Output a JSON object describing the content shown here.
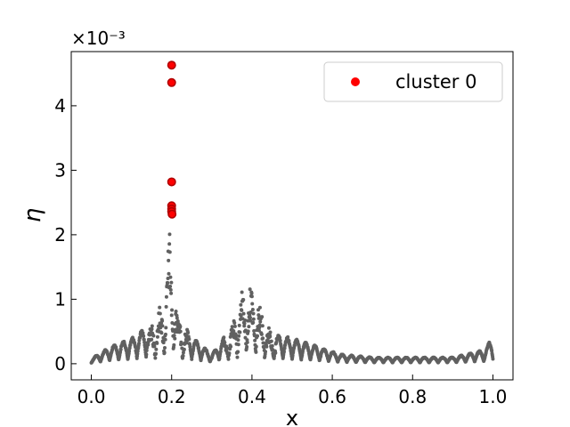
{
  "chart_data": {
    "type": "scatter",
    "title": "",
    "xlabel": "x",
    "ylabel": "η",
    "y_scale_label": "×10⁻³",
    "xlim": [
      -0.05,
      1.05
    ],
    "ylim": [
      -0.00025,
      0.00484
    ],
    "x_ticks": [
      0.0,
      0.2,
      0.4,
      0.6,
      0.8,
      1.0
    ],
    "x_tick_labels": [
      "0.0",
      "0.2",
      "0.4",
      "0.6",
      "0.8",
      "1.0"
    ],
    "y_ticks": [
      0,
      0.001,
      0.002,
      0.003,
      0.004
    ],
    "y_tick_labels": [
      "0",
      "1",
      "2",
      "3",
      "4"
    ],
    "grid": false,
    "legend_position": "top-right",
    "legend": [
      "cluster 0"
    ],
    "colors": {
      "background_points": "#606060",
      "cluster": "#ff0000",
      "cluster_edge": "#b00000"
    },
    "series": [
      {
        "name": "cluster 0",
        "x": [
          0.2,
          0.2,
          0.2,
          0.2,
          0.2,
          0.2,
          0.201
        ],
        "y": [
          0.00463,
          0.00436,
          0.00282,
          0.00245,
          0.0024,
          0.00236,
          0.00232
        ]
      }
    ],
    "background_series": {
      "description_hidden": true,
      "envelope": [
        {
          "x": 0.0,
          "y": 8e-05
        },
        {
          "x": 0.05,
          "y": 0.00028
        },
        {
          "x": 0.1,
          "y": 0.0004
        },
        {
          "x": 0.15,
          "y": 0.00065
        },
        {
          "x": 0.18,
          "y": 0.001
        },
        {
          "x": 0.195,
          "y": 0.0021
        },
        {
          "x": 0.215,
          "y": 0.00085
        },
        {
          "x": 0.245,
          "y": 0.00045
        },
        {
          "x": 0.3,
          "y": 0.00015
        },
        {
          "x": 0.35,
          "y": 0.0006
        },
        {
          "x": 0.385,
          "y": 0.00133
        },
        {
          "x": 0.41,
          "y": 0.0011
        },
        {
          "x": 0.45,
          "y": 0.00048
        },
        {
          "x": 0.5,
          "y": 0.0004
        },
        {
          "x": 0.55,
          "y": 0.0003
        },
        {
          "x": 0.62,
          "y": 0.00015
        },
        {
          "x": 0.7,
          "y": 0.0001
        },
        {
          "x": 0.8,
          "y": 0.0001
        },
        {
          "x": 0.9,
          "y": 0.0001
        },
        {
          "x": 0.98,
          "y": 0.00022
        },
        {
          "x": 1.0,
          "y": 0.00045
        }
      ]
    }
  }
}
